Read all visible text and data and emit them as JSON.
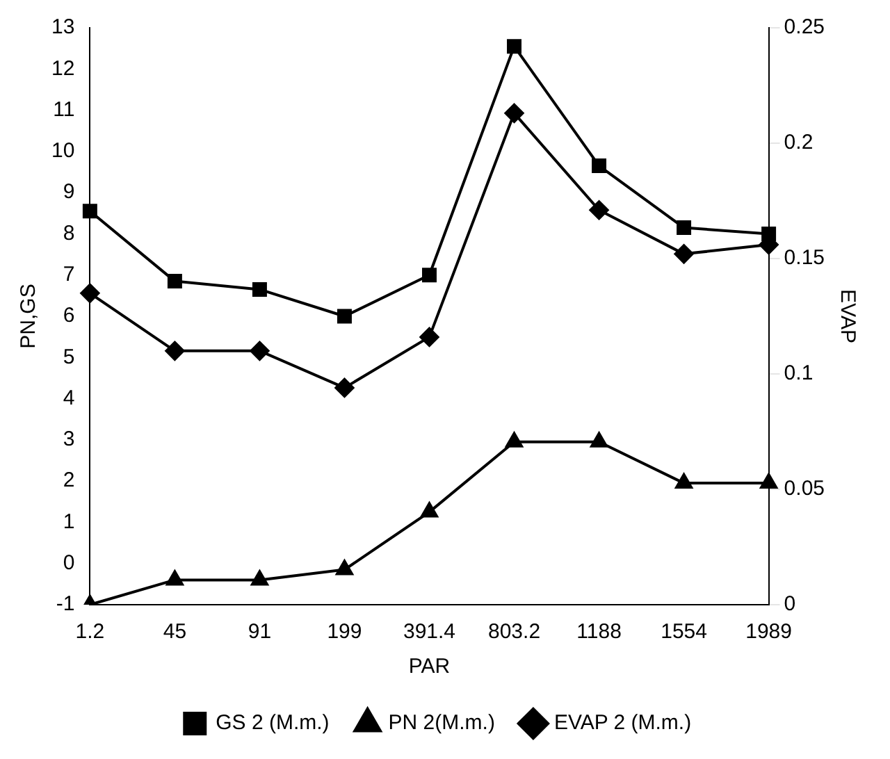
{
  "chart_data": {
    "type": "line",
    "xlabel": "PAR",
    "ylabel": "PN,GS",
    "y2label": "EVAP",
    "categories": [
      "1.2",
      "45",
      "91",
      "199",
      "391.4",
      "803.2",
      "1188",
      "1554",
      "1989"
    ],
    "series": [
      {
        "name": "GS 2 (M.m.)",
        "color": "#000000",
        "marker": "square",
        "values": [
          8.55,
          6.85,
          6.65,
          6.0,
          7.0,
          12.55,
          9.65,
          8.15,
          8.0
        ]
      },
      {
        "name": "PN 2(M.m.)",
        "color": "#000000",
        "marker": "triangle",
        "values": [
          -1,
          -0.4,
          -0.4,
          -0.15,
          1.25,
          2.95,
          2.95,
          1.95,
          1.95
        ]
      },
      {
        "name": "EVAP 2 (M.m.)",
        "color": "#000000",
        "marker": "diamond",
        "axis": "y2",
        "values": [
          0.135,
          0.11,
          0.11,
          0.094,
          0.116,
          0.213,
          0.171,
          0.152,
          0.156
        ]
      }
    ],
    "ylim": [
      -1,
      13
    ],
    "yticks": [
      -1,
      0,
      1,
      2,
      3,
      4,
      5,
      6,
      7,
      8,
      9,
      10,
      11,
      12,
      13
    ],
    "y2lim": [
      0,
      0.25
    ],
    "y2ticks": [
      0,
      0.05,
      0.1,
      0.15,
      0.2,
      0.25
    ],
    "grid": false,
    "legend": "bottom",
    "line_style": "solid"
  }
}
